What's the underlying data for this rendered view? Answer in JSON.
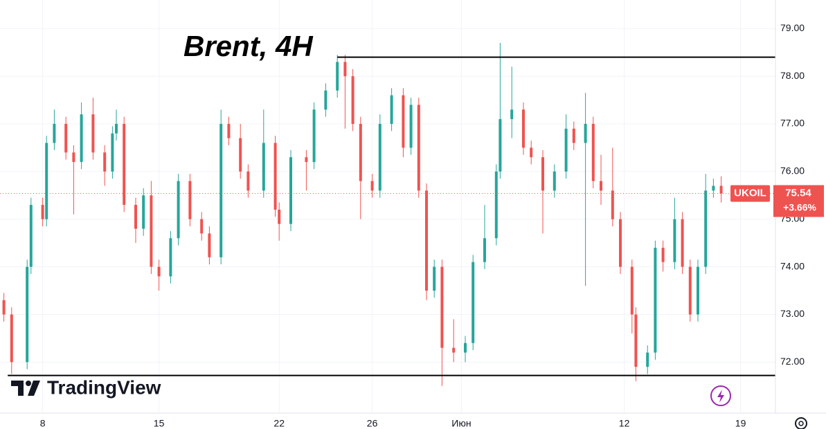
{
  "chart_data": {
    "type": "candlestick",
    "title": "Brent, 4H",
    "symbol": "UKOIL",
    "last_price": 75.54,
    "change": {
      "value": 3.66,
      "label": "+3.66%"
    },
    "watermark": "TradingView",
    "up_color": "#26a69a",
    "down_color": "#ef5350",
    "xlim": [
      0,
      200
    ],
    "ylim": [
      70.93,
      79.6
    ],
    "xticks": [
      {
        "value": 11,
        "label": "8"
      },
      {
        "value": 41,
        "label": "15"
      },
      {
        "value": 72,
        "label": "22"
      },
      {
        "value": 96,
        "label": "26"
      },
      {
        "value": 119,
        "label": "Июн"
      },
      {
        "value": 161,
        "label": "12"
      },
      {
        "value": 191,
        "label": "19"
      }
    ],
    "yticks": [
      {
        "value": 72,
        "label": "72.00"
      },
      {
        "value": 73,
        "label": "73.00"
      },
      {
        "value": 74,
        "label": "74.00"
      },
      {
        "value": 75,
        "label": "75.00"
      },
      {
        "value": 76,
        "label": "76.00"
      },
      {
        "value": 77,
        "label": "77.00"
      },
      {
        "value": 78,
        "label": "78.00"
      },
      {
        "value": 79,
        "label": "79.00"
      }
    ],
    "grid": true,
    "levels": [
      {
        "value": 78.4,
        "from": 87
      },
      {
        "value": 71.72,
        "from": 2
      }
    ],
    "x": [
      1,
      3,
      7,
      8,
      11,
      12,
      14,
      17,
      19,
      21,
      24,
      27,
      29,
      30,
      32,
      35,
      37,
      39,
      41,
      44,
      46,
      49,
      52,
      54,
      57,
      59,
      62,
      64,
      68,
      71,
      72,
      75,
      79,
      81,
      84,
      87,
      89,
      91,
      93,
      96,
      98,
      101,
      104,
      106,
      108,
      110,
      112,
      114,
      117,
      120,
      122,
      125,
      128,
      129,
      132,
      135,
      137,
      140,
      143,
      146,
      148,
      151,
      153,
      155,
      158,
      160,
      163,
      164,
      167,
      169,
      171,
      174,
      176,
      178,
      180,
      182,
      184,
      186
    ],
    "open": [
      73.3,
      73.0,
      72.0,
      74.0,
      75.3,
      75.0,
      76.6,
      77.0,
      76.4,
      76.2,
      77.2,
      76.4,
      76.0,
      76.8,
      77.0,
      75.3,
      74.8,
      75.5,
      74.0,
      73.8,
      74.6,
      75.8,
      75.0,
      74.7,
      74.2,
      77.0,
      76.7,
      76.0,
      75.6,
      76.6,
      75.2,
      74.9,
      76.3,
      76.2,
      77.3,
      77.7,
      78.3,
      78.0,
      77.0,
      75.8,
      75.6,
      77.0,
      77.6,
      76.5,
      77.4,
      75.6,
      73.5,
      74.0,
      72.3,
      72.2,
      72.4,
      74.1,
      74.6,
      76.0,
      77.1,
      77.3,
      76.5,
      76.3,
      75.6,
      76.0,
      76.9,
      76.6,
      77.0,
      75.8,
      75.6,
      75.0,
      74.0,
      73.0,
      71.9,
      72.2,
      74.4,
      74.1,
      75.0,
      74.0,
      73.0,
      74.0,
      75.6,
      75.7
    ],
    "high": [
      73.45,
      73.15,
      74.15,
      75.45,
      75.45,
      76.75,
      77.3,
      77.15,
      76.55,
      77.45,
      77.55,
      76.55,
      76.95,
      77.3,
      77.15,
      75.45,
      75.65,
      75.8,
      74.15,
      74.75,
      75.95,
      75.95,
      75.15,
      74.85,
      77.3,
      77.15,
      77.0,
      76.15,
      77.3,
      76.75,
      75.35,
      76.45,
      76.45,
      77.45,
      77.85,
      78.45,
      78.45,
      78.15,
      77.15,
      75.95,
      77.2,
      77.75,
      77.75,
      77.55,
      77.55,
      75.75,
      74.15,
      74.15,
      72.9,
      72.55,
      74.25,
      75.3,
      76.15,
      78.7,
      78.2,
      77.45,
      76.65,
      76.45,
      76.15,
      77.2,
      77.05,
      77.65,
      77.15,
      76.35,
      76.5,
      75.15,
      74.15,
      73.15,
      72.35,
      74.55,
      74.55,
      75.45,
      75.15,
      74.15,
      74.15,
      75.95,
      75.85,
      75.9
    ],
    "low": [
      72.85,
      71.75,
      71.85,
      73.85,
      74.85,
      74.85,
      76.45,
      76.25,
      75.1,
      76.05,
      76.25,
      75.7,
      75.85,
      76.65,
      75.15,
      74.5,
      74.65,
      73.85,
      73.5,
      73.65,
      74.45,
      74.85,
      74.55,
      74.05,
      74.05,
      76.55,
      75.85,
      75.45,
      75.45,
      75.05,
      74.55,
      74.75,
      75.6,
      76.05,
      77.15,
      77.55,
      76.9,
      76.85,
      75.0,
      75.45,
      75.45,
      76.85,
      76.3,
      76.35,
      75.45,
      73.3,
      73.35,
      71.5,
      72.0,
      72.0,
      72.25,
      73.95,
      74.45,
      75.85,
      76.7,
      76.35,
      76.15,
      74.7,
      75.45,
      75.85,
      76.45,
      73.6,
      75.65,
      75.3,
      74.85,
      73.85,
      72.6,
      71.6,
      71.75,
      72.05,
      73.9,
      73.95,
      73.85,
      72.85,
      72.85,
      73.85,
      75.45,
      75.35
    ],
    "close": [
      73.0,
      72.0,
      74.0,
      75.3,
      75.0,
      76.6,
      77.0,
      76.4,
      76.2,
      77.2,
      76.4,
      76.0,
      76.8,
      77.0,
      75.3,
      74.8,
      75.5,
      74.0,
      73.8,
      74.6,
      75.8,
      75.0,
      74.7,
      74.2,
      77.0,
      76.7,
      76.0,
      75.6,
      76.6,
      75.2,
      74.9,
      76.3,
      76.2,
      77.3,
      77.7,
      78.3,
      78.0,
      77.0,
      75.8,
      75.6,
      77.0,
      77.6,
      76.5,
      77.4,
      75.6,
      73.5,
      74.0,
      72.3,
      72.2,
      72.4,
      74.1,
      74.6,
      76.0,
      77.1,
      77.3,
      76.5,
      76.3,
      75.6,
      76.0,
      76.9,
      76.6,
      77.0,
      75.8,
      75.6,
      75.0,
      74.0,
      73.0,
      71.9,
      72.2,
      74.4,
      74.1,
      75.0,
      74.0,
      73.0,
      74.0,
      75.6,
      75.7,
      75.54
    ]
  }
}
